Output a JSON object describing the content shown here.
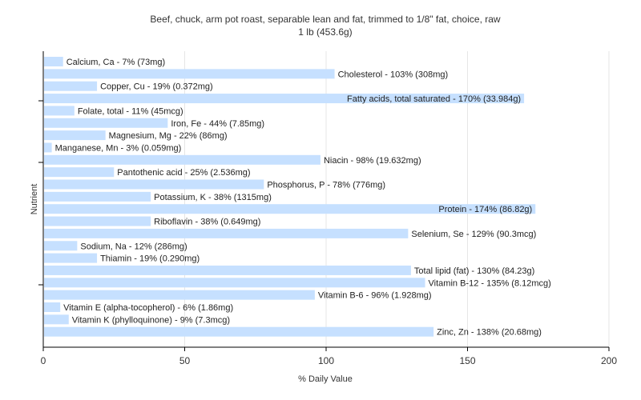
{
  "chart_data": {
    "type": "bar",
    "orientation": "horizontal",
    "title": "Beef, chuck, arm pot roast, separable lean and fat, trimmed to 1/8\" fat, choice, raw",
    "subtitle": "1 lb (453.6g)",
    "xlabel": "% Daily Value",
    "ylabel": "Nutrient",
    "xlim": [
      0,
      200
    ],
    "xticks": [
      "0",
      "50",
      "100",
      "150",
      "200"
    ],
    "grid": true,
    "bar_color": "#c6e0ff",
    "categories": [
      "Calcium, Ca",
      "Cholesterol",
      "Copper, Cu",
      "Fatty acids, total saturated",
      "Folate, total",
      "Iron, Fe",
      "Magnesium, Mg",
      "Manganese, Mn",
      "Niacin",
      "Pantothenic acid",
      "Phosphorus, P",
      "Potassium, K",
      "Protein",
      "Riboflavin",
      "Selenium, Se",
      "Sodium, Na",
      "Thiamin",
      "Total lipid (fat)",
      "Vitamin B-12",
      "Vitamin B-6",
      "Vitamin E (alpha-tocopherol)",
      "Vitamin K (phylloquinone)",
      "Zinc, Zn"
    ],
    "values": [
      7,
      103,
      19,
      170,
      11,
      44,
      22,
      3,
      98,
      25,
      78,
      38,
      174,
      38,
      129,
      12,
      19,
      130,
      135,
      96,
      6,
      9,
      138
    ],
    "labels": [
      "Calcium, Ca - 7% (73mg)",
      "Cholesterol - 103% (308mg)",
      "Copper, Cu - 19% (0.372mg)",
      "Fatty acids, total saturated - 170% (33.984g)",
      "Folate, total - 11% (45mcg)",
      "Iron, Fe - 44% (7.85mg)",
      "Magnesium, Mg - 22% (86mg)",
      "Manganese, Mn - 3% (0.059mg)",
      "Niacin - 98% (19.632mg)",
      "Pantothenic acid - 25% (2.536mg)",
      "Phosphorus, P - 78% (776mg)",
      "Potassium, K - 38% (1315mg)",
      "Protein - 174% (86.82g)",
      "Riboflavin - 38% (0.649mg)",
      "Selenium, Se - 129% (90.3mcg)",
      "Sodium, Na - 12% (286mg)",
      "Thiamin - 19% (0.290mg)",
      "Total lipid (fat) - 130% (84.23g)",
      "Vitamin B-12 - 135% (8.12mcg)",
      "Vitamin B-6 - 96% (1.928mg)",
      "Vitamin E (alpha-tocopherol) - 6% (1.86mg)",
      "Vitamin K (phylloquinone) - 9% (7.3mcg)",
      "Zinc, Zn - 138% (20.68mg)"
    ]
  }
}
